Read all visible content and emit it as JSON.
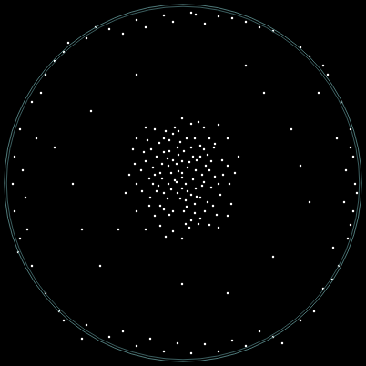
{
  "chart_data": {
    "type": "scatter",
    "color": "#ffffff",
    "marker": "circle",
    "grid": false,
    "tick_labels": false,
    "xlim": [
      0,
      402
    ],
    "ylim": [
      0,
      402
    ],
    "x": [
      120,
      150,
      180,
      210,
      240,
      270,
      95,
      300,
      330,
      160,
      225,
      255,
      135,
      190,
      285,
      360,
      375,
      385,
      388,
      390,
      388,
      382,
      372,
      355,
      370,
      380,
      378,
      366,
      350,
      392,
      330,
      300,
      270,
      240,
      210,
      180,
      150,
      120,
      95,
      255,
      195,
      165,
      225,
      285,
      135,
      50,
      35,
      22,
      16,
      14,
      16,
      22,
      35,
      50,
      70,
      28,
      40,
      30,
      65,
      45,
      80,
      100,
      300,
      320,
      110,
      290,
      60,
      340,
      250,
      150,
      200,
      270,
      130,
      330,
      90,
      75,
      340,
      345,
      70,
      105,
      310,
      25,
      385,
      215,
      90,
      365,
      20,
      355,
      60,
      385,
      200,
      185,
      215,
      170,
      230,
      195,
      205,
      180,
      220,
      160,
      240,
      190,
      210,
      175,
      225,
      150,
      250,
      200,
      185,
      215,
      165,
      235,
      195,
      205,
      180,
      220,
      155,
      245,
      190,
      210,
      170,
      230,
      200,
      188,
      212,
      178,
      222,
      196,
      204,
      168,
      232,
      186,
      214,
      158,
      242,
      176,
      224,
      192,
      208,
      148,
      252,
      182,
      218,
      162,
      238,
      200,
      194,
      206,
      172,
      228,
      184,
      216,
      164,
      236,
      198,
      202,
      176,
      224,
      190,
      210,
      180,
      220,
      166,
      234,
      196,
      204,
      186,
      214,
      172,
      228,
      142,
      258,
      200,
      200,
      150,
      250,
      150,
      250,
      160,
      240,
      182,
      218,
      138,
      262,
      170,
      230,
      194,
      206,
      188,
      212,
      178,
      222,
      198,
      202,
      184,
      216,
      168,
      232,
      192,
      208,
      174,
      226,
      196,
      204,
      156,
      244,
      186,
      214,
      164,
      236,
      180,
      220,
      146,
      254,
      190,
      210,
      176,
      224,
      160,
      240
    ],
    "values": [
      370,
      380,
      385,
      388,
      384,
      378,
      360,
      368,
      350,
      372,
      376,
      382,
      365,
      378,
      372,
      320,
      290,
      260,
      230,
      200,
      170,
      140,
      110,
      85,
      250,
      215,
      180,
      130,
      300,
      190,
      50,
      32,
      22,
      16,
      14,
      16,
      22,
      32,
      45,
      28,
      25,
      30,
      24,
      38,
      38,
      80,
      110,
      140,
      170,
      200,
      230,
      260,
      290,
      320,
      345,
      185,
      250,
      150,
      60,
      300,
      200,
      280,
      120,
      260,
      110,
      300,
      240,
      180,
      80,
      320,
      90,
      330,
      150,
      220,
      150,
      355,
      340,
      60,
      50,
      372,
      25,
      215,
      240,
      386,
      30,
      95,
      125,
      330,
      335,
      155,
      207,
      220,
      195,
      210,
      215,
      240,
      175,
      190,
      230,
      225,
      200,
      255,
      160,
      245,
      170,
      200,
      220,
      225,
      200,
      215,
      185,
      240,
      190,
      250,
      235,
      185,
      215,
      210,
      170,
      240,
      165,
      250,
      195,
      212,
      205,
      222,
      198,
      232,
      182,
      200,
      225,
      248,
      168,
      235,
      188,
      176,
      238,
      262,
      152,
      222,
      200,
      258,
      156,
      248,
      166,
      212,
      202,
      218,
      230,
      180,
      184,
      226,
      206,
      208,
      246,
      170,
      212,
      202,
      226,
      188,
      172,
      242,
      238,
      176,
      214,
      200,
      236,
      178,
      192,
      232,
      210,
      212,
      140,
      272,
      170,
      250,
      250,
      165,
      150,
      265,
      142,
      268,
      190,
      230,
      260,
      155,
      222,
      192,
      194,
      230,
      206,
      210,
      184,
      236,
      228,
      186,
      218,
      196,
      204,
      224,
      198,
      220,
      258,
      156,
      192,
      226,
      166,
      250,
      176,
      244,
      250,
      162,
      238,
      178,
      148,
      266,
      154,
      262,
      262,
      152
    ]
  }
}
